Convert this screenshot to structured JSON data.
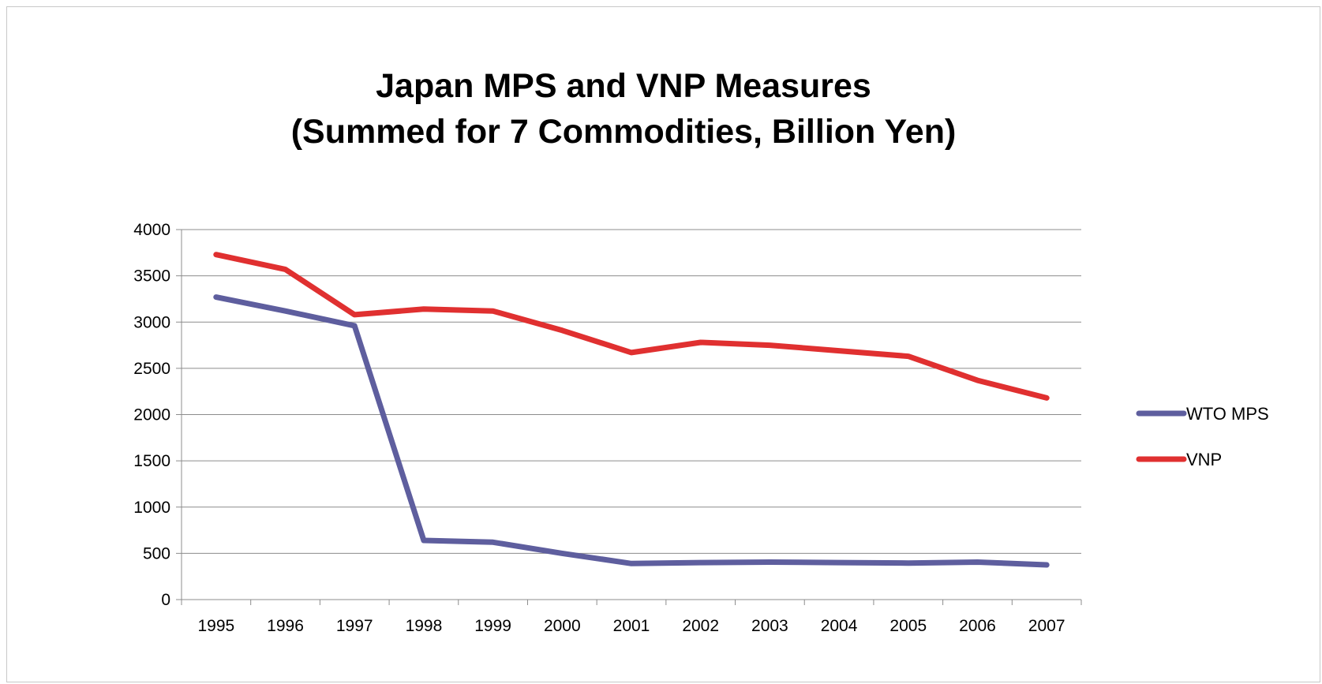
{
  "chart_data": {
    "type": "line",
    "title_lines": [
      "Japan MPS and VNP Measures",
      "(Summed for 7 Commodities, Billion Yen)"
    ],
    "xlabel": "",
    "ylabel": "",
    "categories": [
      "1995",
      "1996",
      "1997",
      "1998",
      "1999",
      "2000",
      "2001",
      "2002",
      "2003",
      "2004",
      "2005",
      "2006",
      "2007"
    ],
    "ylim": [
      0,
      4000
    ],
    "yticks": [
      "0",
      "500",
      "1000",
      "1500",
      "2000",
      "2500",
      "3000",
      "3500",
      "4000"
    ],
    "grid": true,
    "legend_position": "right",
    "series": [
      {
        "name": "WTO MPS",
        "color": "#5E5E9E",
        "values": [
          3270,
          3120,
          2960,
          640,
          620,
          500,
          390,
          400,
          405,
          400,
          395,
          405,
          375
        ]
      },
      {
        "name": "VNP",
        "color": "#E03030",
        "values": [
          3730,
          3570,
          3080,
          3140,
          3120,
          2910,
          2670,
          2780,
          2750,
          2690,
          2630,
          2370,
          2180
        ]
      }
    ]
  }
}
